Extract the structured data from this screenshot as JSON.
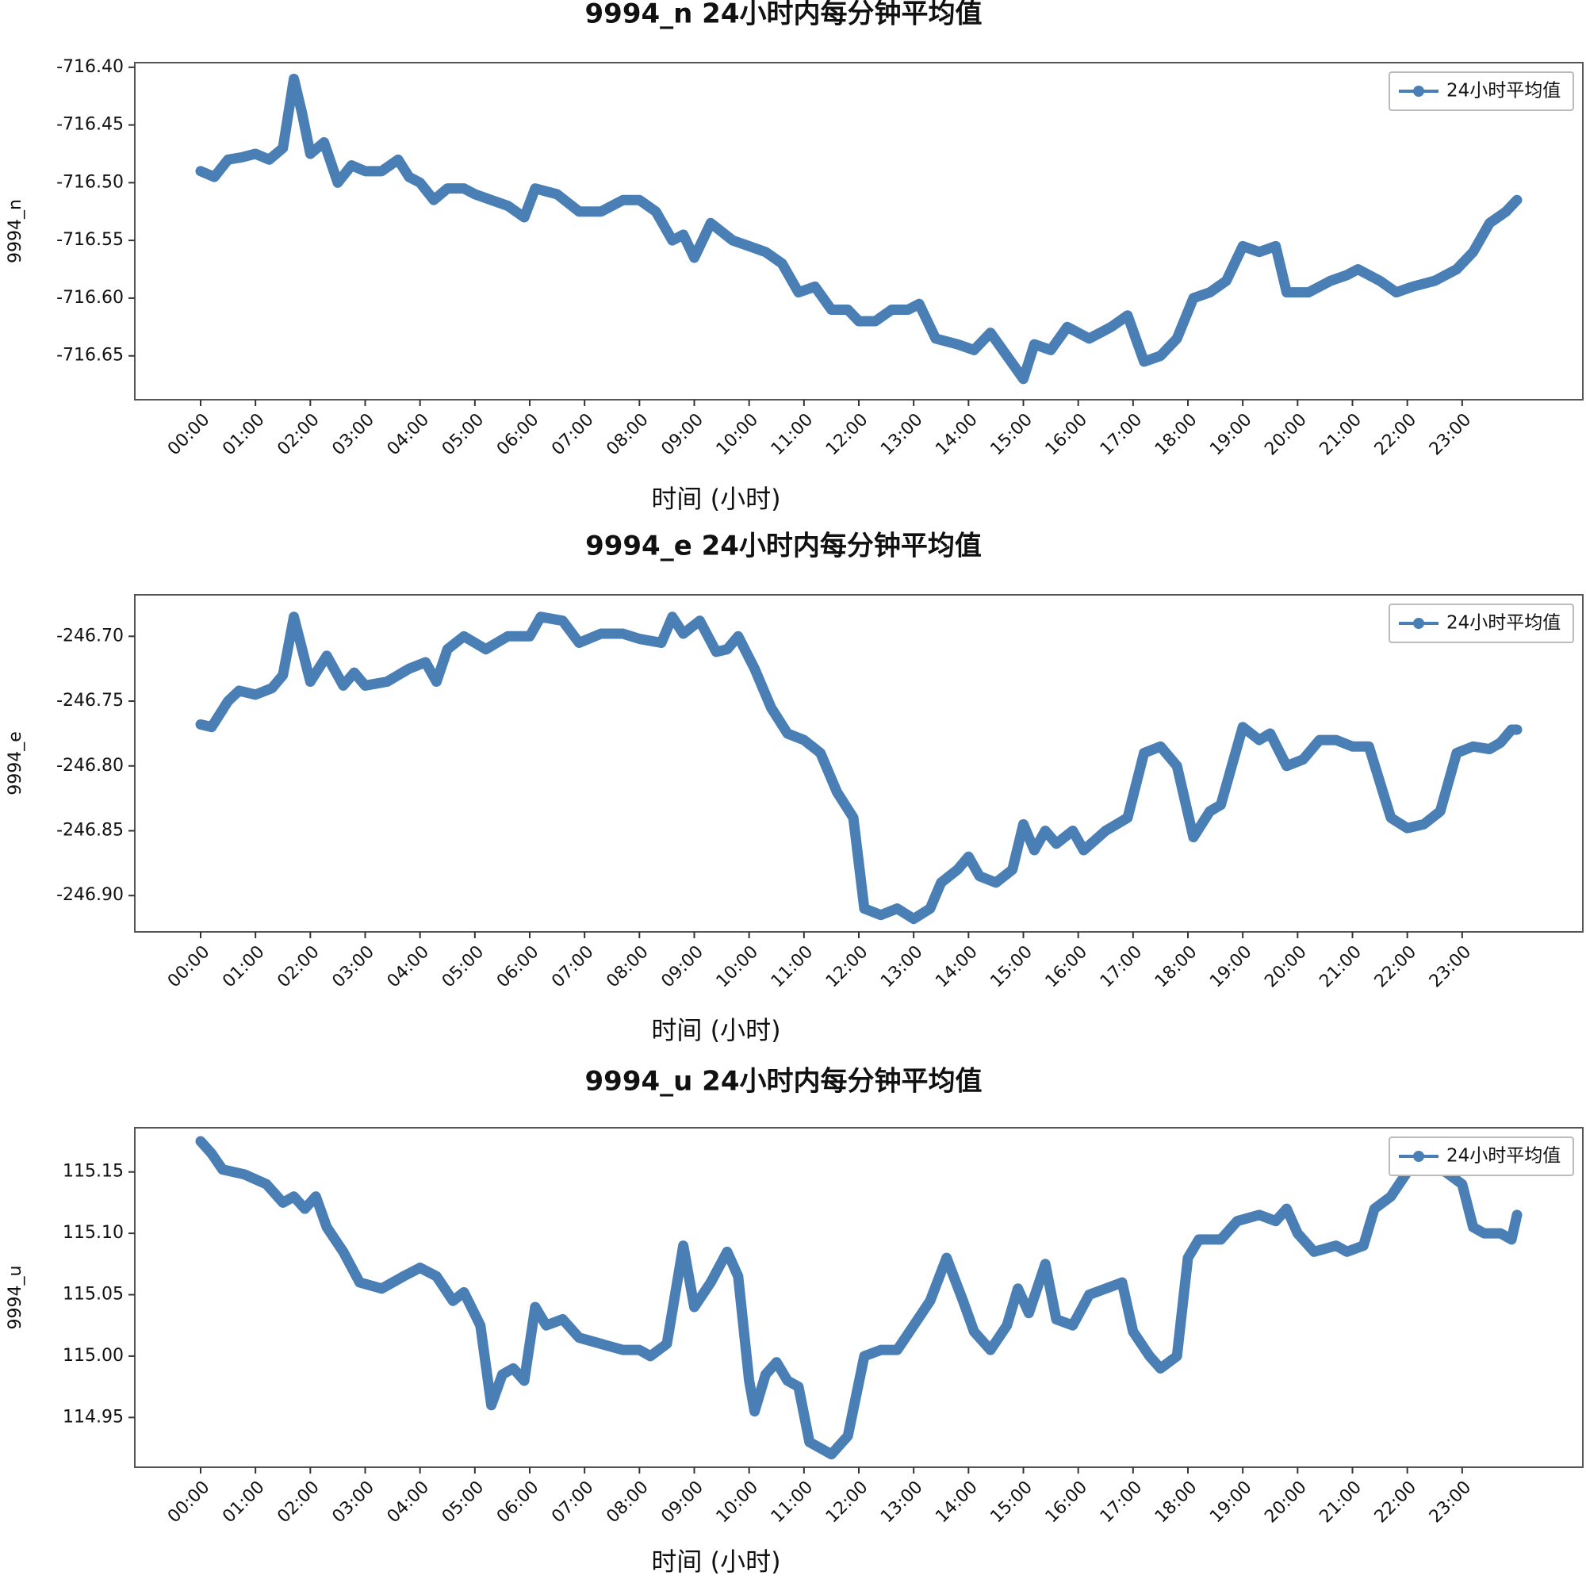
{
  "chart_data": [
    {
      "type": "line",
      "title": "9994_n 24小时内每分钟平均值",
      "x_label": "时间 (小时)",
      "y_label": "9994_n",
      "legend": "upper right",
      "x": [
        0,
        0.25,
        0.5,
        0.75,
        1,
        1.25,
        1.5,
        1.7,
        1.85,
        2,
        2.25,
        2.5,
        2.75,
        3,
        3.3,
        3.6,
        3.8,
        4,
        4.25,
        4.5,
        4.8,
        5,
        5.3,
        5.6,
        5.9,
        6.1,
        6.5,
        6.9,
        7.3,
        7.7,
        8,
        8.3,
        8.6,
        8.8,
        9,
        9.3,
        9.7,
        10,
        10.3,
        10.6,
        10.9,
        11.2,
        11.5,
        11.8,
        12,
        12.3,
        12.6,
        12.9,
        13.1,
        13.4,
        13.8,
        14.1,
        14.4,
        14.7,
        15,
        15.2,
        15.5,
        15.8,
        16.2,
        16.6,
        16.9,
        17.2,
        17.5,
        17.8,
        18.1,
        18.4,
        18.7,
        19,
        19.3,
        19.6,
        19.8,
        20.2,
        20.6,
        20.9,
        21.1,
        21.5,
        21.8,
        22.1,
        22.5,
        22.9,
        23.2,
        23.5,
        23.8,
        24
      ],
      "series": [
        {
          "name": "24小时平均值",
          "color": "#4a7fb5",
          "values": [
            -716.49,
            -716.495,
            -716.48,
            -716.478,
            -716.475,
            -716.48,
            -716.47,
            -716.41,
            -716.44,
            -716.475,
            -716.465,
            -716.5,
            -716.485,
            -716.49,
            -716.49,
            -716.48,
            -716.495,
            -716.5,
            -716.515,
            -716.505,
            -716.505,
            -716.51,
            -716.515,
            -716.52,
            -716.53,
            -716.505,
            -716.51,
            -716.525,
            -716.525,
            -716.515,
            -716.515,
            -716.525,
            -716.55,
            -716.545,
            -716.565,
            -716.535,
            -716.55,
            -716.555,
            -716.56,
            -716.57,
            -716.595,
            -716.59,
            -716.61,
            -716.61,
            -716.62,
            -716.62,
            -716.61,
            -716.61,
            -716.605,
            -716.635,
            -716.64,
            -716.645,
            -716.63,
            -716.65,
            -716.67,
            -716.64,
            -716.645,
            -716.625,
            -716.635,
            -716.625,
            -716.615,
            -716.655,
            -716.65,
            -716.635,
            -716.6,
            -716.595,
            -716.585,
            -716.555,
            -716.56,
            -716.555,
            -716.595,
            -716.595,
            -716.585,
            -716.58,
            -716.575,
            -716.585,
            -716.595,
            -716.59,
            -716.585,
            -716.575,
            -716.56,
            -716.535,
            -716.525,
            -716.515
          ]
        }
      ],
      "xlim": [
        -1.2,
        25.2
      ],
      "ylim": [
        -716.688,
        -716.396
      ],
      "xticks": [
        {
          "value": 0,
          "label": "00:00"
        },
        {
          "value": 1,
          "label": "01:00"
        },
        {
          "value": 2,
          "label": "02:00"
        },
        {
          "value": 3,
          "label": "03:00"
        },
        {
          "value": 4,
          "label": "04:00"
        },
        {
          "value": 5,
          "label": "05:00"
        },
        {
          "value": 6,
          "label": "06:00"
        },
        {
          "value": 7,
          "label": "07:00"
        },
        {
          "value": 8,
          "label": "08:00"
        },
        {
          "value": 9,
          "label": "09:00"
        },
        {
          "value": 10,
          "label": "10:00"
        },
        {
          "value": 11,
          "label": "11:00"
        },
        {
          "value": 12,
          "label": "12:00"
        },
        {
          "value": 13,
          "label": "13:00"
        },
        {
          "value": 14,
          "label": "14:00"
        },
        {
          "value": 15,
          "label": "15:00"
        },
        {
          "value": 16,
          "label": "16:00"
        },
        {
          "value": 17,
          "label": "17:00"
        },
        {
          "value": 18,
          "label": "18:00"
        },
        {
          "value": 19,
          "label": "19:00"
        },
        {
          "value": 20,
          "label": "20:00"
        },
        {
          "value": 21,
          "label": "21:00"
        },
        {
          "value": 22,
          "label": "22:00"
        },
        {
          "value": 23,
          "label": "23:00"
        }
      ],
      "yticks": [
        {
          "value": -716.4,
          "label": "-716.40"
        },
        -716.45,
        {
          "value": -716.5,
          "label": "-716.50"
        },
        -716.55,
        {
          "value": -716.6,
          "label": "-716.60"
        },
        -716.65
      ]
    },
    {
      "type": "line",
      "title": "9994_e 24小时内每分钟平均值",
      "x_label": "时间 (小时)",
      "y_label": "9994_e",
      "legend": "upper right",
      "x": [
        0,
        0.2,
        0.5,
        0.7,
        1,
        1.3,
        1.5,
        1.7,
        1.85,
        2,
        2.3,
        2.6,
        2.8,
        3,
        3.4,
        3.8,
        4.1,
        4.3,
        4.5,
        4.8,
        5.2,
        5.6,
        6,
        6.2,
        6.6,
        6.9,
        7.3,
        7.7,
        8,
        8.4,
        8.6,
        8.8,
        9.1,
        9.4,
        9.6,
        9.8,
        10.1,
        10.4,
        10.7,
        11,
        11.3,
        11.6,
        11.9,
        12.1,
        12.4,
        12.7,
        13,
        13.3,
        13.5,
        13.8,
        14,
        14.2,
        14.5,
        14.8,
        15,
        15.2,
        15.4,
        15.6,
        15.9,
        16.1,
        16.5,
        16.9,
        17.2,
        17.5,
        17.8,
        18.1,
        18.4,
        18.6,
        18.8,
        19,
        19.3,
        19.5,
        19.8,
        20.1,
        20.4,
        20.7,
        21,
        21.3,
        21.7,
        22,
        22.3,
        22.6,
        22.9,
        23.2,
        23.5,
        23.7,
        23.9,
        24
      ],
      "series": [
        {
          "name": "24小时平均值",
          "color": "#4a7fb5",
          "values": [
            -246.768,
            -246.77,
            -246.75,
            -246.742,
            -246.745,
            -246.74,
            -246.73,
            -246.685,
            -246.71,
            -246.735,
            -246.715,
            -246.738,
            -246.728,
            -246.738,
            -246.735,
            -246.725,
            -246.72,
            -246.735,
            -246.71,
            -246.7,
            -246.71,
            -246.7,
            -246.7,
            -246.685,
            -246.688,
            -246.705,
            -246.698,
            -246.698,
            -246.702,
            -246.705,
            -246.685,
            -246.698,
            -246.688,
            -246.712,
            -246.71,
            -246.7,
            -246.725,
            -246.755,
            -246.775,
            -246.78,
            -246.79,
            -246.82,
            -246.84,
            -246.91,
            -246.915,
            -246.91,
            -246.918,
            -246.91,
            -246.89,
            -246.88,
            -246.87,
            -246.885,
            -246.89,
            -246.88,
            -246.845,
            -246.865,
            -246.85,
            -246.86,
            -246.85,
            -246.865,
            -246.85,
            -246.84,
            -246.79,
            -246.785,
            -246.8,
            -246.855,
            -246.835,
            -246.83,
            -246.8,
            -246.77,
            -246.78,
            -246.775,
            -246.8,
            -246.795,
            -246.78,
            -246.78,
            -246.785,
            -246.785,
            -246.84,
            -246.848,
            -246.845,
            -246.835,
            -246.79,
            -246.785,
            -246.787,
            -246.782,
            -246.772,
            -246.772
          ]
        }
      ],
      "xlim": [
        -1.2,
        25.2
      ],
      "ylim": [
        -246.928,
        -246.668
      ],
      "xticks": [
        {
          "value": 0,
          "label": "00:00"
        },
        {
          "value": 1,
          "label": "01:00"
        },
        {
          "value": 2,
          "label": "02:00"
        },
        {
          "value": 3,
          "label": "03:00"
        },
        {
          "value": 4,
          "label": "04:00"
        },
        {
          "value": 5,
          "label": "05:00"
        },
        {
          "value": 6,
          "label": "06:00"
        },
        {
          "value": 7,
          "label": "07:00"
        },
        {
          "value": 8,
          "label": "08:00"
        },
        {
          "value": 9,
          "label": "09:00"
        },
        {
          "value": 10,
          "label": "10:00"
        },
        {
          "value": 11,
          "label": "11:00"
        },
        {
          "value": 12,
          "label": "12:00"
        },
        {
          "value": 13,
          "label": "13:00"
        },
        {
          "value": 14,
          "label": "14:00"
        },
        {
          "value": 15,
          "label": "15:00"
        },
        {
          "value": 16,
          "label": "16:00"
        },
        {
          "value": 17,
          "label": "17:00"
        },
        {
          "value": 18,
          "label": "18:00"
        },
        {
          "value": 19,
          "label": "19:00"
        },
        {
          "value": 20,
          "label": "20:00"
        },
        {
          "value": 21,
          "label": "21:00"
        },
        {
          "value": 22,
          "label": "22:00"
        },
        {
          "value": 23,
          "label": "23:00"
        }
      ],
      "yticks": [
        {
          "value": -246.7,
          "label": "-246.70"
        },
        -246.75,
        {
          "value": -246.8,
          "label": "-246.80"
        },
        -246.85,
        {
          "value": -246.9,
          "label": "-246.90"
        }
      ]
    },
    {
      "type": "line",
      "title": "9994_u 24小时内每分钟平均值",
      "x_label": "时间 (小时)",
      "y_label": "9994_u",
      "legend": "upper right",
      "x": [
        0,
        0.2,
        0.4,
        0.8,
        1.2,
        1.5,
        1.7,
        1.9,
        2.1,
        2.3,
        2.6,
        2.9,
        3.3,
        3.7,
        4,
        4.3,
        4.6,
        4.8,
        5.1,
        5.3,
        5.5,
        5.7,
        5.9,
        6.1,
        6.3,
        6.6,
        6.9,
        7.3,
        7.7,
        8,
        8.2,
        8.5,
        8.8,
        9,
        9.3,
        9.6,
        9.8,
        10,
        10.1,
        10.3,
        10.5,
        10.7,
        10.9,
        11.1,
        11.3,
        11.5,
        11.8,
        12.1,
        12.4,
        12.7,
        13,
        13.3,
        13.6,
        13.9,
        14.1,
        14.4,
        14.7,
        14.9,
        15.1,
        15.4,
        15.6,
        15.9,
        16.2,
        16.5,
        16.8,
        17,
        17.3,
        17.5,
        17.8,
        18,
        18.2,
        18.6,
        18.9,
        19.3,
        19.6,
        19.8,
        20,
        20.3,
        20.7,
        20.9,
        21.2,
        21.4,
        21.7,
        22,
        22.3,
        22.7,
        23,
        23.2,
        23.4,
        23.7,
        23.9,
        24
      ],
      "series": [
        {
          "name": "24小时平均值",
          "color": "#4a7fb5",
          "values": [
            115.175,
            115.165,
            115.152,
            115.148,
            115.14,
            115.125,
            115.13,
            115.12,
            115.13,
            115.105,
            115.085,
            115.06,
            115.055,
            115.065,
            115.072,
            115.065,
            115.045,
            115.052,
            115.025,
            114.96,
            114.985,
            114.99,
            114.98,
            115.04,
            115.025,
            115.03,
            115.015,
            115.01,
            115.005,
            115.005,
            115,
            115.01,
            115.09,
            115.04,
            115.06,
            115.085,
            115.065,
            114.98,
            114.955,
            114.985,
            114.995,
            114.98,
            114.975,
            114.93,
            114.925,
            114.92,
            114.935,
            115,
            115.005,
            115.005,
            115.025,
            115.045,
            115.08,
            115.045,
            115.02,
            115.005,
            115.025,
            115.055,
            115.035,
            115.075,
            115.03,
            115.025,
            115.05,
            115.055,
            115.06,
            115.02,
            115,
            114.99,
            115,
            115.08,
            115.095,
            115.095,
            115.11,
            115.115,
            115.11,
            115.12,
            115.1,
            115.085,
            115.09,
            115.085,
            115.09,
            115.12,
            115.13,
            115.15,
            115.155,
            115.15,
            115.14,
            115.105,
            115.1,
            115.1,
            115.095,
            115.115
          ]
        }
      ],
      "xlim": [
        -1.2,
        25.2
      ],
      "ylim": [
        114.9095,
        115.186
      ],
      "xticks": [
        {
          "value": 0,
          "label": "00:00"
        },
        {
          "value": 1,
          "label": "01:00"
        },
        {
          "value": 2,
          "label": "02:00"
        },
        {
          "value": 3,
          "label": "03:00"
        },
        {
          "value": 4,
          "label": "04:00"
        },
        {
          "value": 5,
          "label": "05:00"
        },
        {
          "value": 6,
          "label": "06:00"
        },
        {
          "value": 7,
          "label": "07:00"
        },
        {
          "value": 8,
          "label": "08:00"
        },
        {
          "value": 9,
          "label": "09:00"
        },
        {
          "value": 10,
          "label": "10:00"
        },
        {
          "value": 11,
          "label": "11:00"
        },
        {
          "value": 12,
          "label": "12:00"
        },
        {
          "value": 13,
          "label": "13:00"
        },
        {
          "value": 14,
          "label": "14:00"
        },
        {
          "value": 15,
          "label": "15:00"
        },
        {
          "value": 16,
          "label": "16:00"
        },
        {
          "value": 17,
          "label": "17:00"
        },
        {
          "value": 18,
          "label": "18:00"
        },
        {
          "value": 19,
          "label": "19:00"
        },
        {
          "value": 20,
          "label": "20:00"
        },
        {
          "value": 21,
          "label": "21:00"
        },
        {
          "value": 22,
          "label": "22:00"
        },
        {
          "value": 23,
          "label": "23:00"
        }
      ],
      "yticks": [
        115.15,
        {
          "value": 115.1,
          "label": "115.10"
        },
        115.05,
        {
          "value": 115,
          "label": "115.00"
        },
        114.95
      ]
    }
  ]
}
